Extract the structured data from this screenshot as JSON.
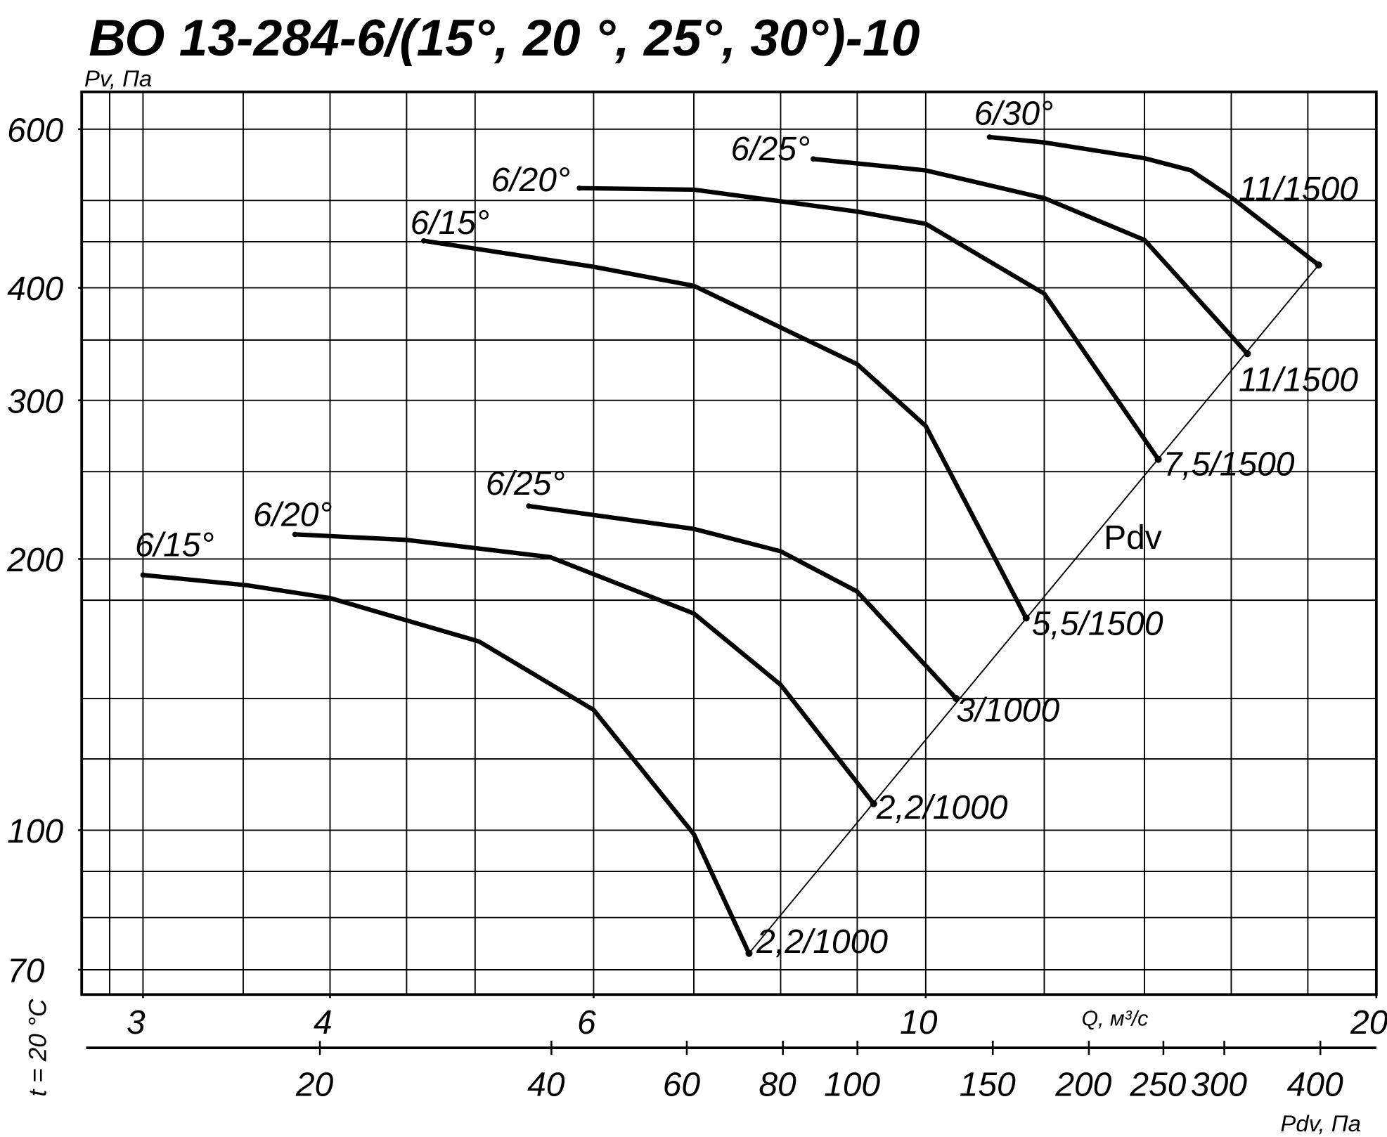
{
  "chart_data": {
    "type": "line",
    "title": "ВО 13-284-6/(15°, 20 °, 25°, 30°)-10",
    "ylabel": "Pv, Па",
    "xlabel": "Q, м³/с",
    "x2label": "Pdv, Па",
    "note": "t = 20 °C",
    "log_x": true,
    "log_y": true,
    "grid": true,
    "color": "#000000",
    "xlim": [
      2.73,
      20
    ],
    "ylim": [
      65.7,
      660
    ],
    "x2lim": [
      9.8,
      473
    ],
    "xticks": [
      3,
      4,
      6,
      10,
      20
    ],
    "yticks": [
      70,
      100,
      200,
      300,
      400,
      600
    ],
    "x2ticks": [
      20,
      40,
      60,
      80,
      100,
      150,
      200,
      250,
      300,
      400
    ],
    "xgrid": [
      2.85,
      3,
      3.5,
      4,
      4.5,
      5,
      6,
      7,
      8,
      9,
      10,
      12,
      14,
      16,
      18
    ],
    "ygrid": [
      70,
      80,
      90,
      100,
      120,
      140,
      180,
      200,
      250,
      300,
      350,
      400,
      450,
      500,
      600
    ],
    "series": [
      {
        "name": "6/15°",
        "end_label": "2,2/1000",
        "x": [
          3,
          3.52,
          4,
          5.03,
          6,
          7,
          7.62
        ],
        "values": [
          192,
          187,
          181,
          162,
          136,
          99,
          73
        ]
      },
      {
        "name": "6/20°",
        "end_label": "2,2/1000",
        "x": [
          3.79,
          4.5,
          5.61,
          7,
          8,
          9.23
        ],
        "values": [
          213,
          210,
          201,
          174,
          145,
          107
        ]
      },
      {
        "name": "6/25°",
        "end_label": "3/1000",
        "x": [
          5.43,
          7,
          8,
          9,
          10.48
        ],
        "values": [
          229,
          216,
          204,
          184,
          140
        ]
      },
      {
        "name": "6/15°",
        "end_label": "5,5/1500",
        "x": [
          4.62,
          6,
          7,
          9,
          10,
          11.67
        ],
        "values": [
          451,
          422,
          402,
          329,
          281,
          172
        ]
      },
      {
        "name": "6/20°",
        "end_label": "7,5/1500",
        "x": [
          5.87,
          7,
          9,
          10,
          12,
          14.3
        ],
        "values": [
          516,
          514,
          486,
          471,
          394,
          258
        ]
      },
      {
        "name": "6/25°",
        "end_label": "11/1500",
        "x": [
          8.41,
          10,
          12,
          14,
          16.4
        ],
        "values": [
          556,
          540,
          503,
          452,
          338
        ]
      },
      {
        "name": "6/30°",
        "end_label": "11/1500",
        "x": [
          11.03,
          12,
          14,
          15.04,
          16,
          18.3
        ],
        "values": [
          588,
          580,
          557,
          540,
          504,
          424
        ]
      }
    ],
    "reference_line": {
      "name": "Pdv",
      "x": [
        7.62,
        18.3
      ],
      "values": [
        73,
        424
      ]
    }
  }
}
